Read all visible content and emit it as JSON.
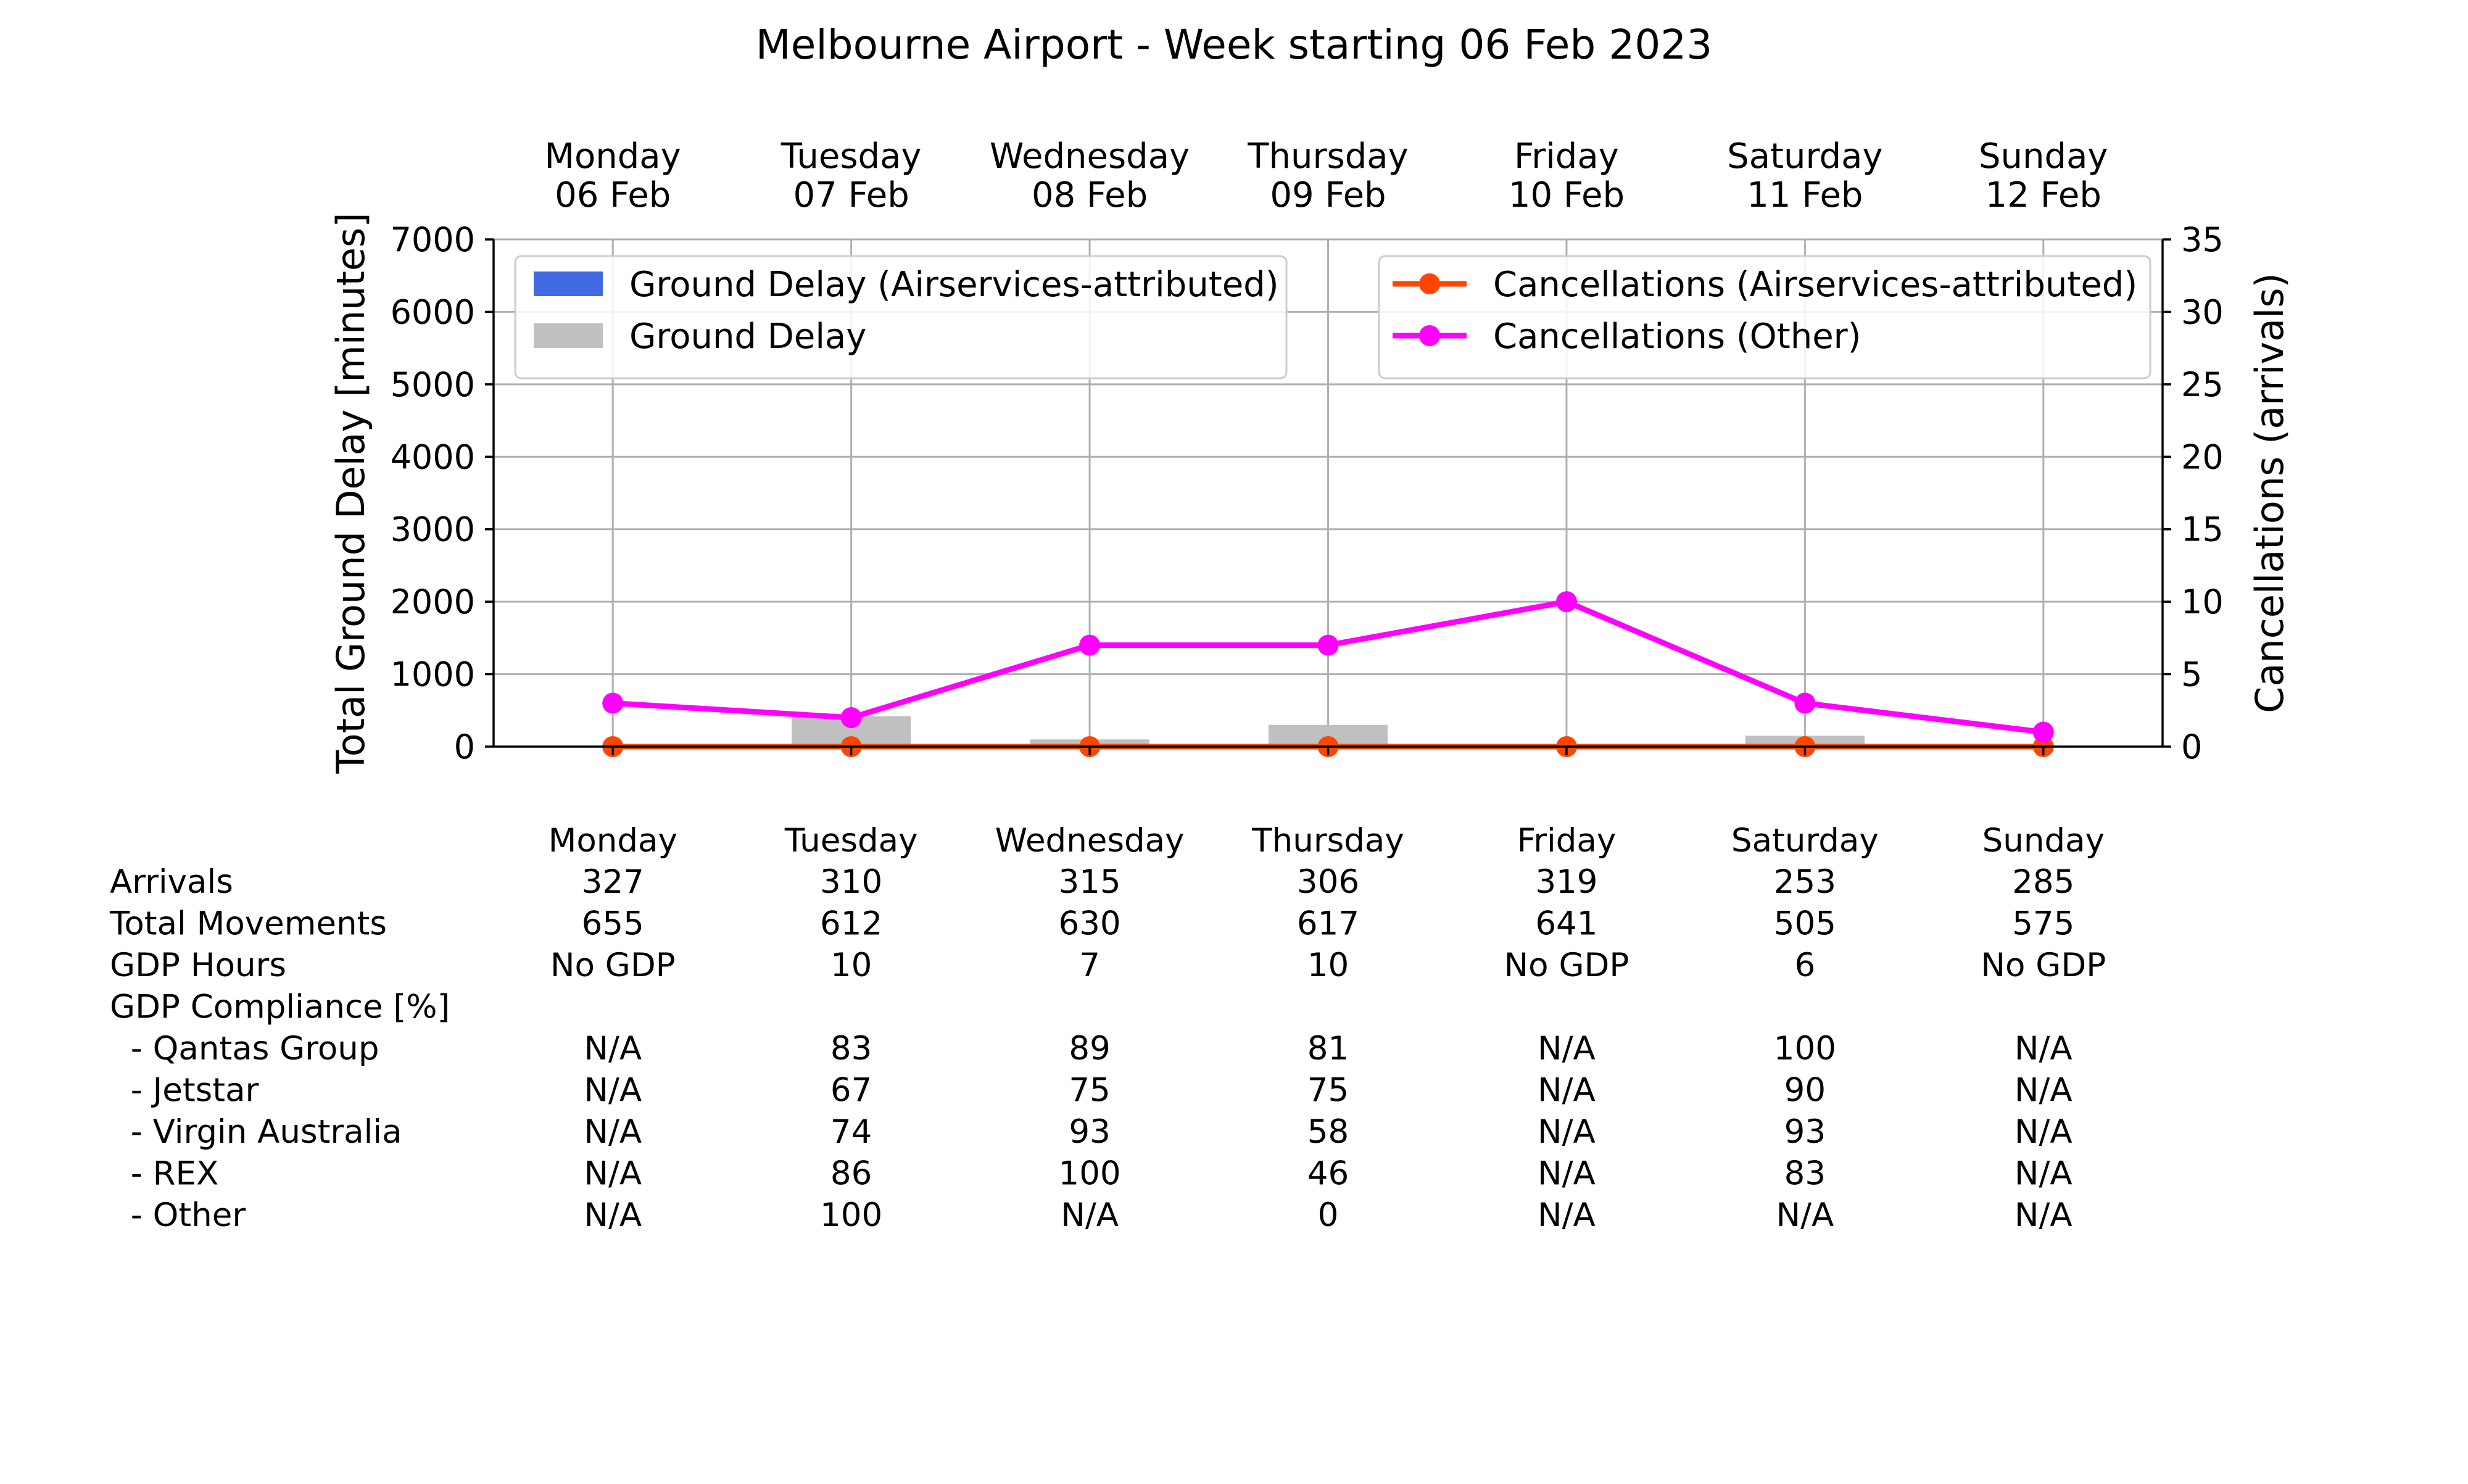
{
  "chart_data": {
    "type": "bar",
    "title": "Melbourne Airport - Week starting 06 Feb 2023",
    "categories": [
      "Monday",
      "Tuesday",
      "Wednesday",
      "Thursday",
      "Friday",
      "Saturday",
      "Sunday"
    ],
    "dates": [
      "06 Feb",
      "07 Feb",
      "08 Feb",
      "09 Feb",
      "10 Feb",
      "11 Feb",
      "12 Feb"
    ],
    "ylabel": "Total Ground Delay [minutes]",
    "ylabel_right": "Cancellations (arrivals)",
    "ylim": [
      0,
      7000
    ],
    "ylim_right": [
      0,
      35
    ],
    "yticks": [
      0,
      1000,
      2000,
      3000,
      4000,
      5000,
      6000,
      7000
    ],
    "yticks_right": [
      0,
      5,
      10,
      15,
      20,
      25,
      30,
      35
    ],
    "grid": true,
    "bar_series": [
      {
        "name": "Ground Delay (Airservices-attributed)",
        "color": "#4169e1",
        "values": [
          0,
          0,
          0,
          0,
          0,
          0,
          0
        ]
      },
      {
        "name": "Ground Delay",
        "color": "#c0c0c0",
        "values": [
          0,
          420,
          100,
          300,
          0,
          150,
          0
        ]
      }
    ],
    "line_series": [
      {
        "name": "Cancellations (Airservices-attributed)",
        "color": "#ff4500",
        "values": [
          0,
          0,
          0,
          0,
          0,
          0,
          0
        ]
      },
      {
        "name": "Cancellations (Other)",
        "color": "#ff00ff",
        "values": [
          3,
          2,
          7,
          7,
          10,
          3,
          1
        ]
      }
    ],
    "legend_left_placement": "upper-left",
    "legend_right_placement": "upper-right"
  },
  "table": {
    "headers": [
      "Monday",
      "Tuesday",
      "Wednesday",
      "Thursday",
      "Friday",
      "Saturday",
      "Sunday"
    ],
    "rows": [
      {
        "label": "Arrivals",
        "values": [
          "327",
          "310",
          "315",
          "306",
          "319",
          "253",
          "285"
        ]
      },
      {
        "label": "Total Movements",
        "values": [
          "655",
          "612",
          "630",
          "617",
          "641",
          "505",
          "575"
        ]
      },
      {
        "label": "GDP Hours",
        "values": [
          "No GDP",
          "10",
          "7",
          "10",
          "No GDP",
          "6",
          "No GDP"
        ]
      },
      {
        "label": "GDP Compliance [%]",
        "values": [
          "",
          "",
          "",
          "",
          "",
          "",
          ""
        ]
      },
      {
        "label": "  - Qantas Group",
        "values": [
          "N/A",
          "83",
          "89",
          "81",
          "N/A",
          "100",
          "N/A"
        ]
      },
      {
        "label": "  - Jetstar",
        "values": [
          "N/A",
          "67",
          "75",
          "75",
          "N/A",
          "90",
          "N/A"
        ]
      },
      {
        "label": "  - Virgin Australia",
        "values": [
          "N/A",
          "74",
          "93",
          "58",
          "N/A",
          "93",
          "N/A"
        ]
      },
      {
        "label": "  - REX",
        "values": [
          "N/A",
          "86",
          "100",
          "46",
          "N/A",
          "83",
          "N/A"
        ]
      },
      {
        "label": "  - Other",
        "values": [
          "N/A",
          "100",
          "N/A",
          "0",
          "N/A",
          "N/A",
          "N/A"
        ]
      }
    ]
  }
}
